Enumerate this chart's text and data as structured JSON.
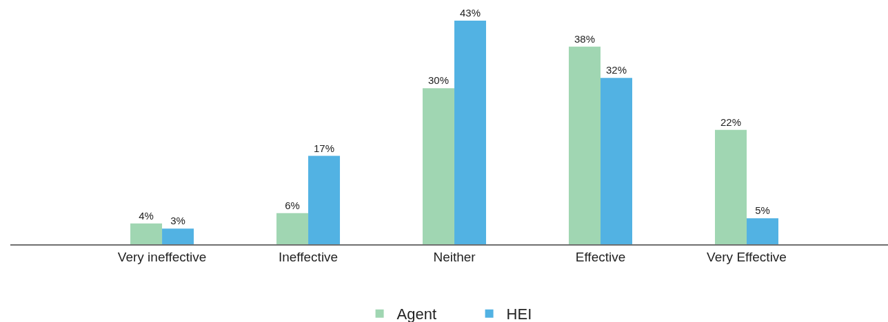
{
  "chart_data": {
    "type": "bar",
    "categories": [
      "Very ineffective",
      "Ineffective",
      "Neither",
      "Effective",
      "Very Effective"
    ],
    "series": [
      {
        "name": "Agent",
        "color": "#a0d6b2",
        "values": [
          4,
          6,
          30,
          38,
          22
        ],
        "value_labels": [
          "4%",
          "6%",
          "30%",
          "38%",
          "22%"
        ]
      },
      {
        "name": "HEI",
        "color": "#52b2e3",
        "values": [
          3,
          17,
          43,
          32,
          5
        ],
        "value_labels": [
          "3%",
          "17%",
          "43%",
          "32%",
          "5%"
        ]
      }
    ],
    "legend": "bottom",
    "tick_labels": "x"
  }
}
